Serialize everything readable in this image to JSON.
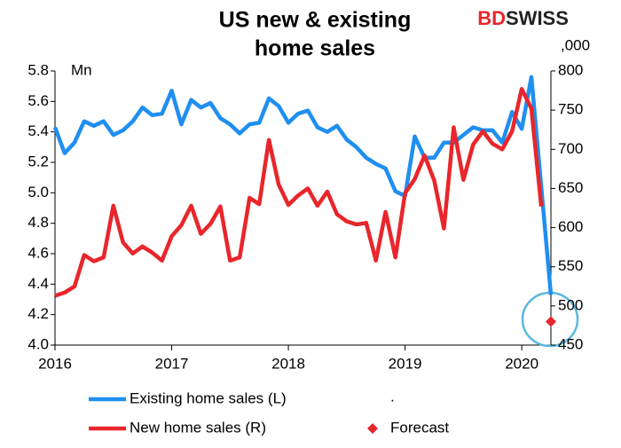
{
  "chart_data": {
    "type": "line",
    "title": [
      "US new & existing",
      "home sales"
    ],
    "logo": [
      "BD",
      "SWISS"
    ],
    "y_unit": "Mn",
    "y2_unit": ",000",
    "x": [
      2016,
      2016.083,
      2016.167,
      2016.25,
      2016.333,
      2016.417,
      2016.5,
      2016.583,
      2016.667,
      2016.75,
      2016.833,
      2016.917,
      2017,
      2017.083,
      2017.167,
      2017.25,
      2017.333,
      2017.417,
      2017.5,
      2017.583,
      2017.667,
      2017.75,
      2017.833,
      2017.917,
      2018,
      2018.083,
      2018.167,
      2018.25,
      2018.333,
      2018.417,
      2018.5,
      2018.583,
      2018.667,
      2018.75,
      2018.833,
      2018.917,
      2019,
      2019.083,
      2019.167,
      2019.25,
      2019.333,
      2019.417,
      2019.5,
      2019.583,
      2019.667,
      2019.75,
      2019.833,
      2019.917,
      2020,
      2020.083,
      2020.167,
      2020.25
    ],
    "series": [
      {
        "name": "Existing home sales (L)",
        "color": "#1f8ff0",
        "axis": "y",
        "values": [
          5.43,
          5.26,
          5.33,
          5.47,
          5.44,
          5.47,
          5.38,
          5.41,
          5.47,
          5.56,
          5.51,
          5.52,
          5.67,
          5.45,
          5.61,
          5.56,
          5.59,
          5.49,
          5.45,
          5.39,
          5.45,
          5.46,
          5.62,
          5.57,
          5.46,
          5.52,
          5.54,
          5.43,
          5.4,
          5.44,
          5.35,
          5.3,
          5.23,
          5.19,
          5.16,
          5.01,
          4.98,
          5.37,
          5.23,
          5.23,
          5.33,
          5.33,
          5.38,
          5.43,
          5.41,
          5.41,
          5.33,
          5.53,
          5.42,
          5.76,
          5.04,
          4.33
        ]
      },
      {
        "name": "New home sales (R)",
        "color": "#e8262b",
        "axis": "y2",
        "values": [
          513,
          517,
          525,
          565,
          557,
          562,
          628,
          581,
          567,
          576,
          568,
          558,
          589,
          603,
          628,
          592,
          605,
          627,
          558,
          562,
          638,
          630,
          712,
          655,
          629,
          641,
          650,
          628,
          646,
          617,
          608,
          604,
          606,
          558,
          620,
          562,
          644,
          662,
          692,
          660,
          599,
          728,
          661,
          706,
          723,
          707,
          700,
          723,
          777,
          752,
          627,
          null
        ]
      },
      {
        "name": "Forecast",
        "color": "#e8262b",
        "axis": "y2",
        "marker": "diamond",
        "x": [
          2020.25
        ],
        "values": [
          480
        ]
      }
    ],
    "legend_extra": ".",
    "xlim": [
      2016,
      2020.25
    ],
    "xticks": [
      2016,
      2017,
      2018,
      2019,
      2020
    ],
    "ylim": [
      4,
      5.8
    ],
    "yticks": [
      {
        "value": 4,
        "label": "4.0"
      },
      4.2,
      4.4,
      4.6,
      4.8,
      {
        "value": 5,
        "label": "5.0"
      },
      5.2,
      5.4,
      5.6,
      5.8
    ],
    "y2lim": [
      450,
      800
    ],
    "y2ticks": [
      450,
      500,
      550,
      600,
      650,
      700,
      750,
      800
    ],
    "grid": false
  }
}
